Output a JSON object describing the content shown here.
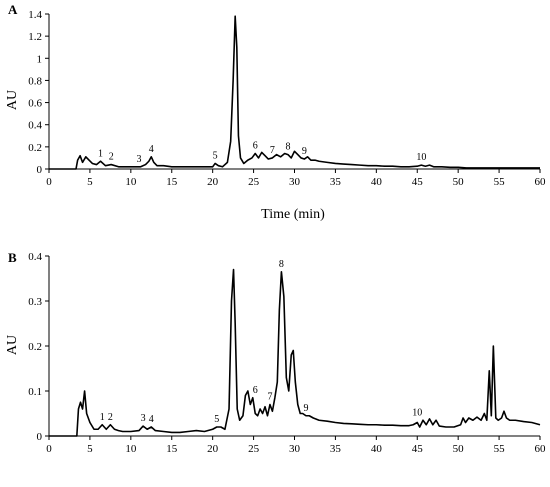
{
  "chart_data": [
    {
      "panel": "A",
      "type": "line",
      "xlabel": "Time (min)",
      "ylabel": "AU",
      "xlim": [
        0,
        60
      ],
      "ylim": [
        0,
        1.4
      ],
      "xticks": [
        0,
        5,
        10,
        15,
        20,
        25,
        30,
        35,
        40,
        45,
        50,
        55,
        60
      ],
      "yticks": [
        0,
        0.2,
        0.4,
        0.6,
        0.8,
        1,
        1.2,
        1.4
      ],
      "ytick_labels": [
        "0",
        "0.2",
        "0.4",
        "0.6",
        "0.8",
        "1",
        "1.2",
        "1.4"
      ],
      "grid": false,
      "series": [
        {
          "x": [
            0,
            3.3,
            3.5,
            3.8,
            4.1,
            4.5,
            4.9,
            5.3,
            5.8,
            6.3,
            6.9,
            7.6,
            8.5,
            9.5,
            10.5,
            11.2,
            11.8,
            12.2,
            12.5,
            12.8,
            13.2,
            14,
            15,
            16,
            17,
            18,
            19,
            20,
            20.3,
            20.7,
            21.2,
            21.8,
            22.2,
            22.5,
            22.75,
            22.95,
            23.15,
            23.4,
            23.8,
            24.3,
            24.8,
            25.2,
            25.6,
            26,
            26.4,
            26.8,
            27.3,
            27.8,
            28.3,
            28.8,
            29.2,
            29.6,
            30,
            30.4,
            30.8,
            31.2,
            31.6,
            32,
            32.5,
            33,
            34,
            35,
            36,
            37,
            38,
            39,
            40,
            41,
            42,
            43,
            44,
            45,
            45.5,
            46,
            46.5,
            47,
            48,
            49,
            50,
            51,
            52,
            53,
            54,
            55,
            56,
            57,
            58,
            59,
            60
          ],
          "y": [
            0,
            0.0,
            0.08,
            0.12,
            0.06,
            0.11,
            0.08,
            0.05,
            0.04,
            0.07,
            0.03,
            0.04,
            0.02,
            0.02,
            0.02,
            0.02,
            0.04,
            0.07,
            0.11,
            0.06,
            0.03,
            0.03,
            0.02,
            0.02,
            0.02,
            0.02,
            0.02,
            0.02,
            0.05,
            0.03,
            0.02,
            0.06,
            0.25,
            0.8,
            1.38,
            1.1,
            0.3,
            0.1,
            0.05,
            0.08,
            0.1,
            0.14,
            0.1,
            0.15,
            0.12,
            0.09,
            0.1,
            0.13,
            0.11,
            0.14,
            0.13,
            0.1,
            0.16,
            0.13,
            0.1,
            0.09,
            0.11,
            0.08,
            0.08,
            0.07,
            0.06,
            0.05,
            0.045,
            0.04,
            0.035,
            0.03,
            0.03,
            0.025,
            0.025,
            0.02,
            0.02,
            0.025,
            0.035,
            0.025,
            0.035,
            0.02,
            0.02,
            0.015,
            0.015,
            0.01,
            0.01,
            0.01,
            0.01,
            0.01,
            0.01,
            0.01,
            0.01,
            0.01,
            0.01
          ]
        }
      ],
      "annotations": [
        {
          "text": "1",
          "x": 6.3,
          "y": 0.07
        },
        {
          "text": "2",
          "x": 7.6,
          "y": 0.04
        },
        {
          "text": "3",
          "x": 11,
          "y": 0.02
        },
        {
          "text": "4",
          "x": 12.5,
          "y": 0.11
        },
        {
          "text": "5",
          "x": 20.3,
          "y": 0.05
        },
        {
          "text": "6",
          "x": 25.2,
          "y": 0.14
        },
        {
          "text": "7",
          "x": 27.3,
          "y": 0.1
        },
        {
          "text": "8",
          "x": 29.2,
          "y": 0.13
        },
        {
          "text": "9",
          "x": 31.2,
          "y": 0.09
        },
        {
          "text": "10",
          "x": 45.5,
          "y": 0.035
        }
      ]
    },
    {
      "panel": "B",
      "type": "line",
      "xlabel": "",
      "ylabel": "AU",
      "xlim": [
        0,
        60
      ],
      "ylim": [
        0,
        0.4
      ],
      "xticks": [
        0,
        5,
        10,
        15,
        20,
        25,
        30,
        35,
        40,
        45,
        50,
        55,
        60
      ],
      "yticks": [
        0,
        0.1,
        0.2,
        0.3,
        0.4
      ],
      "ytick_labels": [
        "0",
        "0.1",
        "0.2",
        "0.3",
        "0.4"
      ],
      "grid": false,
      "series": [
        {
          "x": [
            0,
            3.4,
            3.6,
            3.85,
            4.1,
            4.35,
            4.6,
            5,
            5.5,
            6,
            6.5,
            7,
            7.5,
            8,
            8.5,
            9,
            10,
            11,
            11.5,
            12,
            12.5,
            13,
            14,
            15,
            16,
            17,
            18,
            19,
            20,
            20.5,
            21,
            21.5,
            22,
            22.3,
            22.55,
            22.75,
            23,
            23.3,
            23.7,
            24,
            24.3,
            24.6,
            24.9,
            25.2,
            25.5,
            25.8,
            26.1,
            26.4,
            26.7,
            27,
            27.3,
            27.6,
            27.9,
            28.15,
            28.4,
            28.7,
            29,
            29.3,
            29.6,
            29.85,
            30.1,
            30.4,
            30.7,
            31,
            31.4,
            31.8,
            32.3,
            33,
            34,
            35,
            36,
            37,
            38,
            39,
            40,
            41,
            42,
            43,
            44,
            44.5,
            45,
            45.3,
            45.7,
            46.1,
            46.5,
            46.9,
            47.3,
            47.7,
            48.5,
            49.5,
            50.3,
            50.6,
            50.9,
            51.3,
            51.8,
            52.3,
            52.8,
            53.2,
            53.5,
            53.8,
            54.05,
            54.3,
            54.6,
            54.9,
            55.3,
            55.6,
            55.9,
            56.3,
            57,
            58,
            59,
            60
          ],
          "y": [
            0,
            0.0,
            0.06,
            0.075,
            0.06,
            0.1,
            0.05,
            0.03,
            0.015,
            0.015,
            0.025,
            0.015,
            0.025,
            0.015,
            0.012,
            0.01,
            0.01,
            0.012,
            0.022,
            0.015,
            0.02,
            0.012,
            0.01,
            0.008,
            0.008,
            0.01,
            0.012,
            0.01,
            0.015,
            0.02,
            0.02,
            0.015,
            0.06,
            0.3,
            0.37,
            0.25,
            0.06,
            0.035,
            0.045,
            0.09,
            0.1,
            0.07,
            0.085,
            0.05,
            0.045,
            0.06,
            0.05,
            0.065,
            0.045,
            0.07,
            0.055,
            0.085,
            0.12,
            0.28,
            0.365,
            0.31,
            0.13,
            0.1,
            0.18,
            0.19,
            0.12,
            0.07,
            0.05,
            0.05,
            0.045,
            0.045,
            0.04,
            0.035,
            0.033,
            0.03,
            0.028,
            0.027,
            0.026,
            0.025,
            0.025,
            0.024,
            0.024,
            0.023,
            0.023,
            0.025,
            0.03,
            0.02,
            0.035,
            0.025,
            0.038,
            0.025,
            0.035,
            0.022,
            0.02,
            0.02,
            0.025,
            0.04,
            0.03,
            0.04,
            0.035,
            0.042,
            0.035,
            0.05,
            0.035,
            0.145,
            0.045,
            0.2,
            0.04,
            0.035,
            0.04,
            0.055,
            0.04,
            0.035,
            0.035,
            0.032,
            0.03,
            0.025
          ]
        }
      ],
      "annotations": [
        {
          "text": "1",
          "x": 6.5,
          "y": 0.025
        },
        {
          "text": "2",
          "x": 7.5,
          "y": 0.025
        },
        {
          "text": "3",
          "x": 11.5,
          "y": 0.022
        },
        {
          "text": "4",
          "x": 12.5,
          "y": 0.02
        },
        {
          "text": "5",
          "x": 20.5,
          "y": 0.02
        },
        {
          "text": "6",
          "x": 25.2,
          "y": 0.085
        },
        {
          "text": "7",
          "x": 27,
          "y": 0.07
        },
        {
          "text": "8",
          "x": 28.4,
          "y": 0.365
        },
        {
          "text": "9",
          "x": 31.4,
          "y": 0.045
        },
        {
          "text": "10",
          "x": 45,
          "y": 0.035
        }
      ]
    }
  ]
}
